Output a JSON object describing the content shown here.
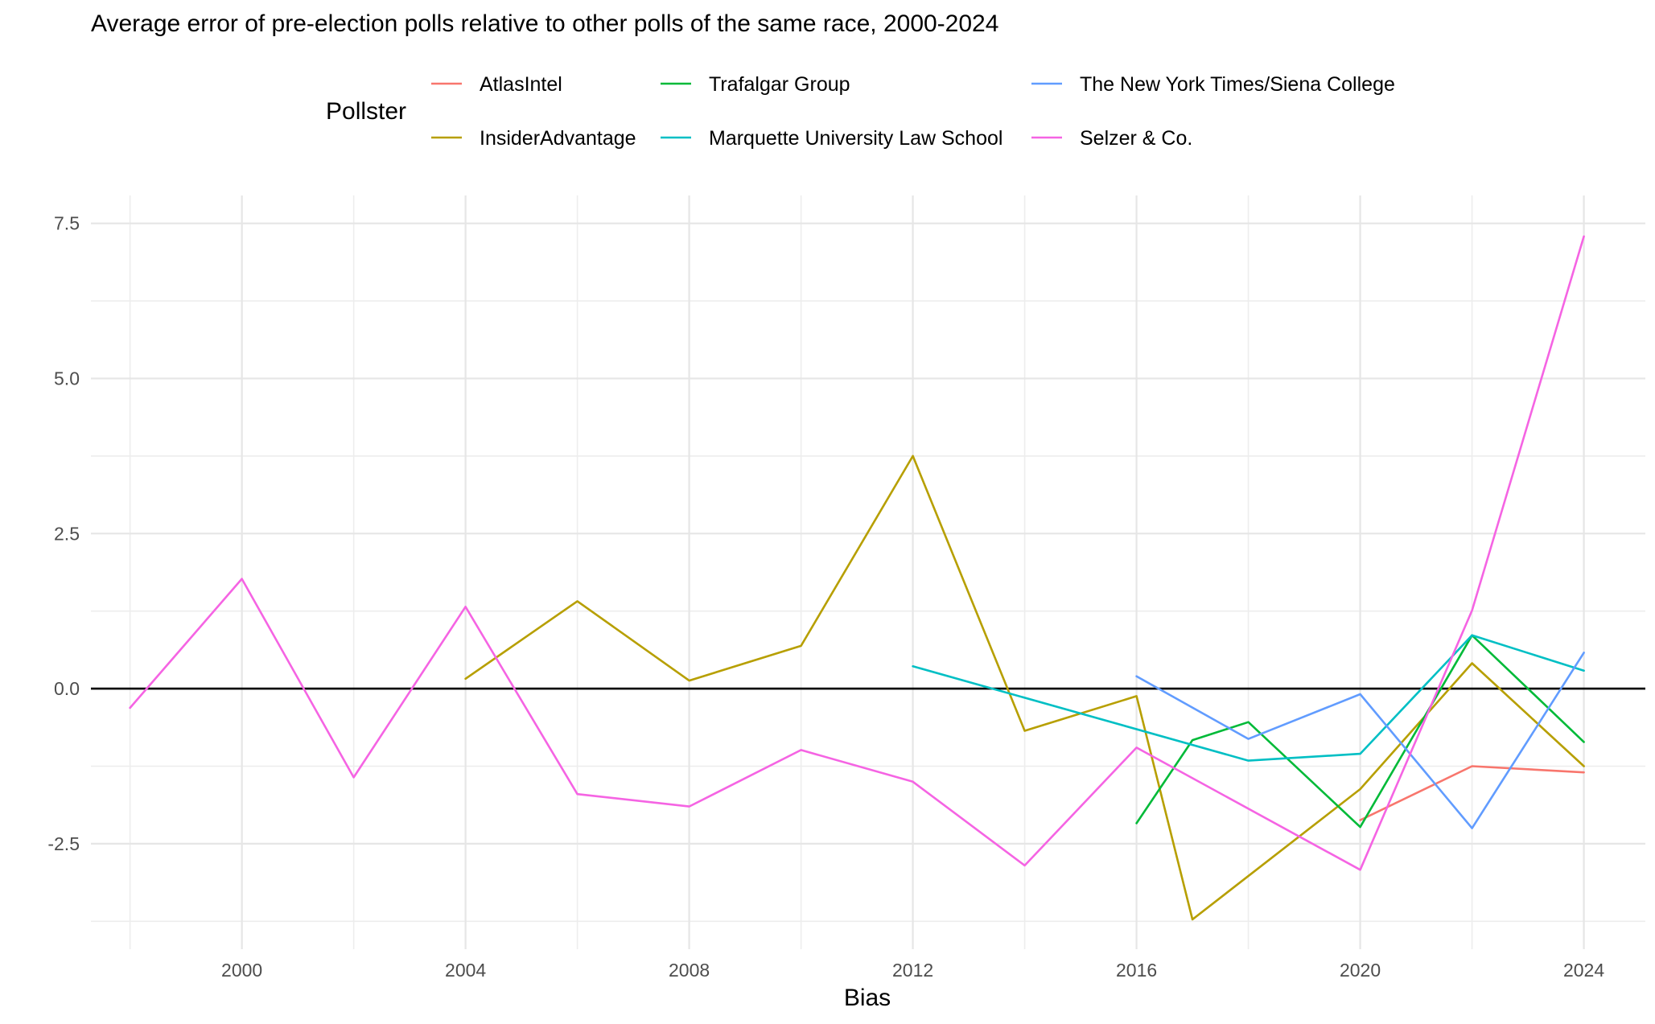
{
  "chart_data": {
    "type": "line",
    "title": "Average error of pre-election polls relative to other polls of the same race, 2000-2024",
    "xlabel": "Bias",
    "ylabel": "",
    "legend": {
      "title": "Pollster",
      "position": "top"
    },
    "xlim": [
      1997.3,
      2025.1
    ],
    "ylim": [
      -4.2,
      7.95
    ],
    "x_ticks": [
      2000,
      2004,
      2008,
      2012,
      2016,
      2020,
      2024
    ],
    "x_tick_labels": [
      "2000",
      "2004",
      "2008",
      "2012",
      "2016",
      "2020",
      "2024"
    ],
    "y_ticks": [
      -2.5,
      0,
      2.5,
      5,
      7.5
    ],
    "y_tick_labels": [
      "-2.5",
      "0.0",
      "2.5",
      "5.0",
      "7.5"
    ],
    "grid": true,
    "reference_line_y": 0,
    "series": [
      {
        "name": "AtlasIntel",
        "color": "#F8766D",
        "points": [
          [
            2020,
            -2.12
          ],
          [
            2022,
            -1.25
          ],
          [
            2024,
            -1.35
          ]
        ]
      },
      {
        "name": "InsiderAdvantage",
        "color": "#B79F00",
        "points": [
          [
            2004,
            0.16
          ],
          [
            2006,
            1.41
          ],
          [
            2008,
            0.13
          ],
          [
            2010,
            0.69
          ],
          [
            2012,
            3.75
          ],
          [
            2014,
            -0.68
          ],
          [
            2016,
            -0.12
          ],
          [
            2017,
            -3.72
          ],
          [
            2020,
            -1.62
          ],
          [
            2022,
            0.41
          ],
          [
            2024,
            -1.25
          ]
        ]
      },
      {
        "name": "Trafalgar Group",
        "color": "#00BA38",
        "points": [
          [
            2016,
            -2.17
          ],
          [
            2017,
            -0.83
          ],
          [
            2018,
            -0.54
          ],
          [
            2020,
            -2.23
          ],
          [
            2022,
            0.86
          ],
          [
            2024,
            -0.86
          ]
        ]
      },
      {
        "name": "Marquette University Law School",
        "color": "#00BFC4",
        "points": [
          [
            2012,
            0.36
          ],
          [
            2018,
            -1.16
          ],
          [
            2020,
            -1.05
          ],
          [
            2022,
            0.86
          ],
          [
            2024,
            0.29
          ]
        ]
      },
      {
        "name": "The New York Times/Siena College",
        "color": "#619CFF",
        "points": [
          [
            2016,
            0.2
          ],
          [
            2018,
            -0.81
          ],
          [
            2020,
            -0.09
          ],
          [
            2022,
            -2.25
          ],
          [
            2024,
            0.58
          ]
        ]
      },
      {
        "name": "Selzer & Co.",
        "color": "#F564E3",
        "points": [
          [
            1998,
            -0.31
          ],
          [
            2000,
            1.77
          ],
          [
            2002,
            -1.43
          ],
          [
            2004,
            1.32
          ],
          [
            2006,
            -1.7
          ],
          [
            2008,
            -1.9
          ],
          [
            2010,
            -0.99
          ],
          [
            2012,
            -1.5
          ],
          [
            2014,
            -2.85
          ],
          [
            2016,
            -0.95
          ],
          [
            2020,
            -2.92
          ],
          [
            2022,
            1.26
          ],
          [
            2024,
            7.29
          ]
        ]
      }
    ]
  }
}
